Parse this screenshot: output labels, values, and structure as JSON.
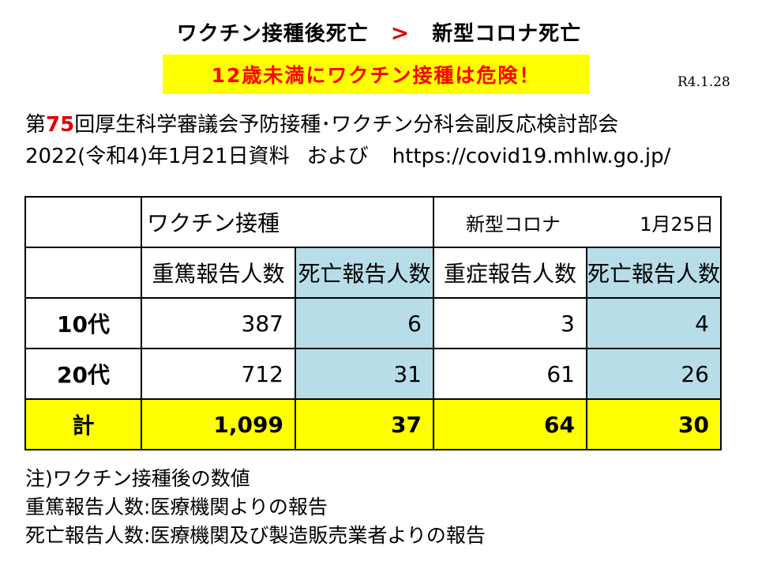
{
  "headline": {
    "left": "ワクチン接種後死亡",
    "symbol": ">",
    "right": "新型コロナ死亡"
  },
  "banner": "12歳未満にワクチン接種は危険！",
  "date_stamp": "R4.1.28",
  "source": {
    "line1_prefix": "第",
    "line1_number": "75",
    "line1_suffix": "回厚生科学審議会予防接種･ワクチン分科会副反応検討部会",
    "line2_date": "2022(令和4)年1月21日資料",
    "line2_and": "および",
    "line2_url": "https://covid19.mhlw.go.jp/"
  },
  "table": {
    "group_vaccine": "ワクチン接種",
    "group_corona": "新型コロナ",
    "group_corona_date": "1月25日",
    "columns": [
      "重篤報告人数",
      "死亡報告人数",
      "重症報告人数",
      "死亡報告人数"
    ],
    "rows": [
      {
        "label": "10代",
        "values": [
          "387",
          "6",
          "3",
          "4"
        ]
      },
      {
        "label": "20代",
        "values": [
          "712",
          "31",
          "61",
          "26"
        ]
      }
    ],
    "total": {
      "label": "計",
      "values": [
        "1,099",
        "37",
        "64",
        "30"
      ]
    }
  },
  "notes": [
    "注)ワクチン接種後の数値",
    "重篤報告人数:医療機関よりの報告",
    "死亡報告人数:医療機関及び製造販売業者よりの報告"
  ],
  "colors": {
    "accent_red": "#e00000",
    "highlight_yellow": "#ffff00",
    "death_column_blue": "#b7dde8"
  }
}
